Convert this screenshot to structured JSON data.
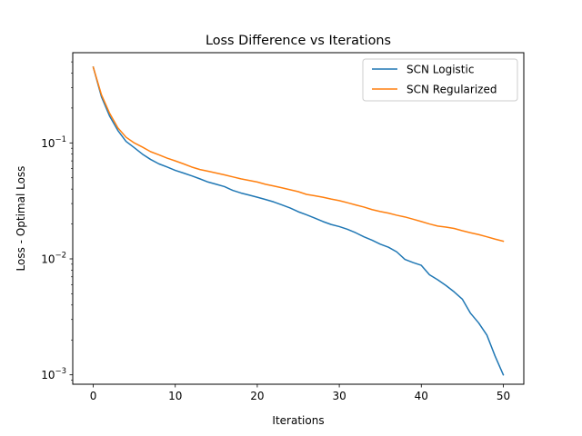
{
  "chart_data": {
    "type": "line",
    "title": "Loss Difference vs Iterations",
    "xlabel": "Iterations",
    "ylabel": "Loss - Optimal Loss",
    "yscale": "log",
    "xlim": [
      -2.5,
      52.5
    ],
    "ylim": [
      0.00083,
      0.6
    ],
    "xticks": [
      0,
      10,
      20,
      30,
      40,
      50
    ],
    "xtick_labels": [
      "0",
      "10",
      "20",
      "30",
      "40",
      "50"
    ],
    "yticks": [
      0.001,
      0.01,
      0.1
    ],
    "ytick_base": "10",
    "ytick_exponents": [
      "−3",
      "−2",
      "−1"
    ],
    "grid": false,
    "legend_position": "top-right",
    "x": [
      0,
      1,
      2,
      3,
      4,
      5,
      6,
      7,
      8,
      9,
      10,
      11,
      12,
      13,
      14,
      15,
      16,
      17,
      18,
      19,
      20,
      21,
      22,
      23,
      24,
      25,
      26,
      27,
      28,
      29,
      30,
      31,
      32,
      33,
      34,
      35,
      36,
      37,
      38,
      39,
      40,
      41,
      42,
      43,
      44,
      45,
      46,
      47,
      48,
      49,
      50
    ],
    "series": [
      {
        "name": "SCN Logistic",
        "color": "#1f77b4",
        "values": [
          0.45,
          0.25,
          0.17,
          0.128,
          0.103,
          0.091,
          0.08,
          0.072,
          0.066,
          0.062,
          0.058,
          0.055,
          0.052,
          0.049,
          0.046,
          0.044,
          0.042,
          0.039,
          0.037,
          0.0355,
          0.034,
          0.0325,
          0.031,
          0.0292,
          0.0275,
          0.0255,
          0.024,
          0.0225,
          0.021,
          0.0198,
          0.019,
          0.018,
          0.0168,
          0.0155,
          0.0145,
          0.0134,
          0.0126,
          0.0115,
          0.0099,
          0.0093,
          0.0088,
          0.0073,
          0.0066,
          0.0059,
          0.0052,
          0.0045,
          0.0034,
          0.0028,
          0.0022,
          0.00145,
          0.001
        ]
      },
      {
        "name": "SCN Regularized",
        "color": "#ff7f0e",
        "values": [
          0.45,
          0.26,
          0.18,
          0.135,
          0.112,
          0.1,
          0.092,
          0.084,
          0.079,
          0.074,
          0.07,
          0.066,
          0.062,
          0.059,
          0.057,
          0.055,
          0.053,
          0.051,
          0.049,
          0.0475,
          0.046,
          0.044,
          0.0425,
          0.041,
          0.0395,
          0.038,
          0.036,
          0.035,
          0.034,
          0.0328,
          0.0318,
          0.0305,
          0.0292,
          0.028,
          0.0266,
          0.0256,
          0.0248,
          0.0238,
          0.023,
          0.022,
          0.021,
          0.02,
          0.0192,
          0.0188,
          0.0183,
          0.0175,
          0.0168,
          0.0162,
          0.0155,
          0.0148,
          0.0142
        ]
      }
    ]
  }
}
